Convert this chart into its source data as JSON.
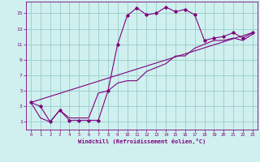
{
  "xlabel": "Windchill (Refroidissement éolien,°C)",
  "bg_color": "#cff0ee",
  "line_color": "#800080",
  "grid_color": "#99cccc",
  "line1_x": [
    0,
    1,
    2,
    3,
    4,
    5,
    6,
    7,
    8,
    9,
    10,
    11,
    12,
    13,
    14,
    15,
    16,
    17,
    18,
    19,
    20,
    21,
    22,
    23
  ],
  "line1_y": [
    3.5,
    3.0,
    1.0,
    2.5,
    1.2,
    1.2,
    1.2,
    1.2,
    5.0,
    11.0,
    14.7,
    15.7,
    14.8,
    15.0,
    15.8,
    15.2,
    15.5,
    14.8,
    11.5,
    11.8,
    12.0,
    12.5,
    11.8,
    12.5
  ],
  "line2_x": [
    0,
    1,
    2,
    3,
    4,
    5,
    6,
    7,
    8,
    9,
    10,
    11,
    12,
    13,
    14,
    15,
    16,
    17,
    18,
    19,
    20,
    21,
    22,
    23
  ],
  "line2_y": [
    3.5,
    1.5,
    1.0,
    2.5,
    1.5,
    1.5,
    1.5,
    4.7,
    5.0,
    6.0,
    6.3,
    6.3,
    7.5,
    8.0,
    8.5,
    9.5,
    9.5,
    10.5,
    11.0,
    11.5,
    11.5,
    11.8,
    11.5,
    12.3
  ],
  "line3_x": [
    0,
    23
  ],
  "line3_y": [
    3.5,
    12.5
  ],
  "xlim": [
    -0.5,
    23.5
  ],
  "ylim": [
    0,
    16.5
  ],
  "yticks": [
    1,
    3,
    5,
    7,
    9,
    11,
    13,
    15
  ],
  "xticks": [
    0,
    1,
    2,
    3,
    4,
    5,
    6,
    7,
    8,
    9,
    10,
    11,
    12,
    13,
    14,
    15,
    16,
    17,
    18,
    19,
    20,
    21,
    22,
    23
  ]
}
